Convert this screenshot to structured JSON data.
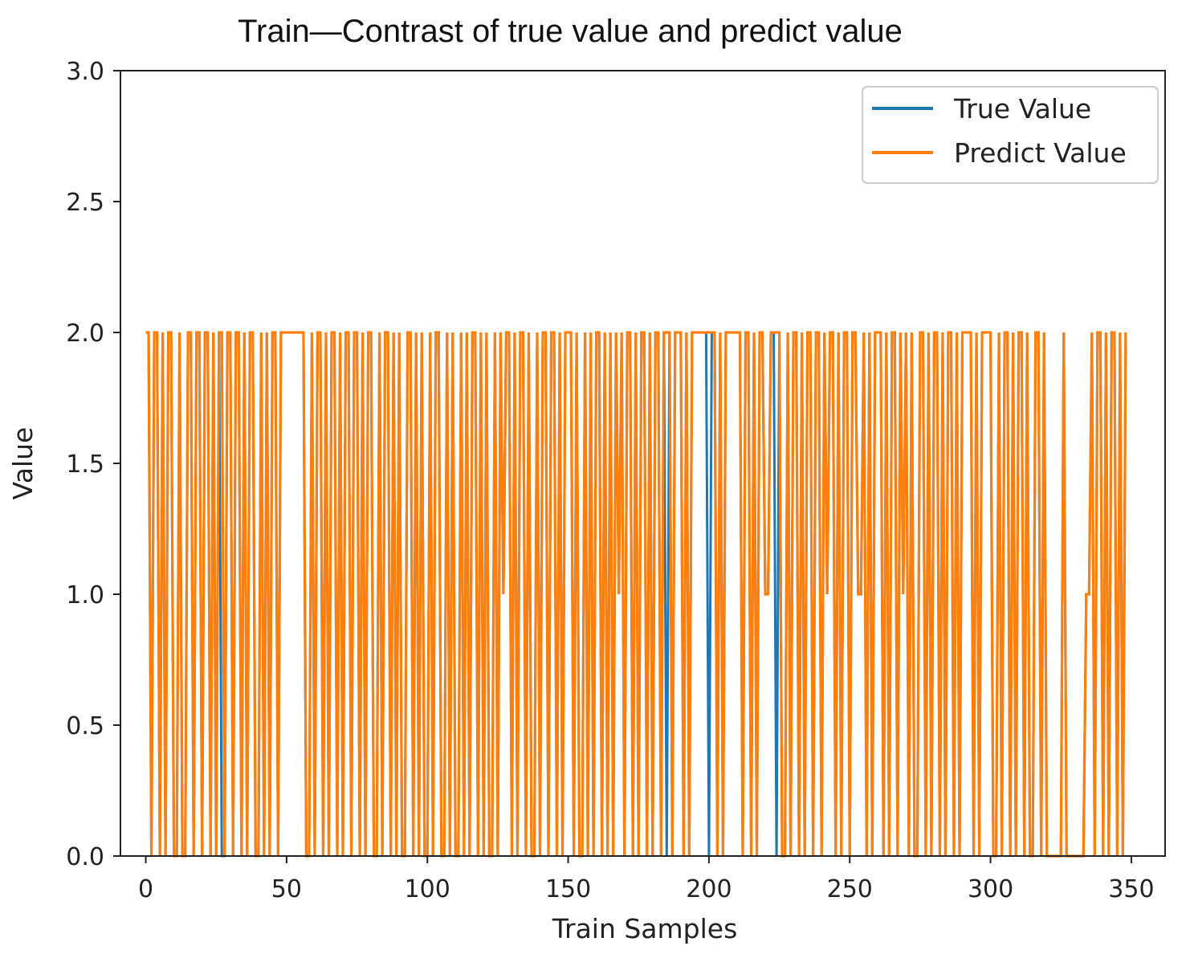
{
  "chart_data": {
    "type": "line",
    "title": "Train—Contrast of true value and predict value",
    "xlabel": "Train Samples",
    "ylabel": "Value",
    "xlim": [
      -9,
      362
    ],
    "ylim": [
      0,
      3.0
    ],
    "xticks": [
      0,
      50,
      100,
      150,
      200,
      250,
      300,
      350
    ],
    "xtick_labels": [
      "0",
      "50",
      "100",
      "150",
      "200",
      "250",
      "300",
      "350"
    ],
    "yticks": [
      0.0,
      0.5,
      1.0,
      1.5,
      2.0,
      2.5,
      3.0
    ],
    "ytick_labels": [
      "0.0",
      "0.5",
      "1.0",
      "1.5",
      "2.0",
      "2.5",
      "3.0"
    ],
    "grid": false,
    "legend_position": "top-right",
    "series": [
      {
        "name": "True Value",
        "color": "#1f77b4",
        "values": [
          2,
          2,
          0,
          2,
          2,
          0,
          2,
          0,
          2,
          2,
          0,
          0,
          2,
          0,
          0,
          2,
          2,
          0,
          2,
          2,
          0,
          2,
          2,
          0,
          2,
          0,
          2,
          0,
          0,
          2,
          2,
          0,
          2,
          2,
          0,
          2,
          0,
          2,
          2,
          0,
          0,
          2,
          0,
          2,
          0,
          2,
          2,
          0,
          2,
          2,
          2,
          2,
          2,
          2,
          2,
          2,
          2,
          0,
          0,
          2,
          0,
          2,
          2,
          0,
          2,
          0,
          2,
          2,
          0,
          2,
          0,
          2,
          2,
          0,
          2,
          2,
          0,
          2,
          0,
          2,
          2,
          0,
          0,
          2,
          0,
          2,
          2,
          0,
          2,
          0,
          2,
          0,
          0,
          2,
          2,
          0,
          2,
          0,
          2,
          0,
          0,
          2,
          0,
          2,
          2,
          0,
          0,
          2,
          0,
          2,
          0,
          0,
          2,
          0,
          2,
          0,
          2,
          2,
          0,
          2,
          0,
          2,
          0,
          0,
          2,
          0,
          2,
          1,
          2,
          2,
          0,
          2,
          0,
          2,
          2,
          0,
          2,
          0,
          0,
          2,
          0,
          2,
          2,
          0,
          2,
          2,
          0,
          2,
          0,
          2,
          2,
          2,
          0,
          2,
          0,
          0,
          2,
          0,
          2,
          0,
          2,
          2,
          0,
          2,
          0,
          2,
          0,
          2,
          1,
          2,
          0,
          2,
          2,
          0,
          2,
          0,
          2,
          2,
          0,
          2,
          0,
          2,
          2,
          0,
          2,
          0,
          2,
          0,
          2,
          2,
          2,
          0,
          2,
          0,
          2,
          2,
          2,
          2,
          2,
          2,
          0,
          2,
          2,
          0,
          2,
          0,
          2,
          2,
          2,
          2,
          2,
          2,
          0,
          2,
          2,
          0,
          2,
          0,
          2,
          2,
          1,
          1,
          2,
          2,
          0,
          2,
          0,
          0,
          2,
          0,
          2,
          2,
          0,
          2,
          0,
          2,
          2,
          0,
          2,
          2,
          0,
          2,
          1,
          2,
          2,
          0,
          2,
          0,
          2,
          2,
          0,
          2,
          2,
          1,
          1,
          2,
          0,
          2,
          0,
          2,
          2,
          2,
          0,
          2,
          0,
          2,
          2,
          0,
          2,
          1,
          2,
          0,
          2,
          0,
          0,
          2,
          2,
          0,
          2,
          0,
          2,
          2,
          0,
          2,
          0,
          2,
          2,
          0,
          2,
          0,
          2,
          2,
          2,
          2,
          0,
          2,
          0,
          2,
          2,
          2,
          2,
          0,
          0,
          2,
          0,
          2,
          2,
          0,
          2,
          0,
          2,
          2,
          0,
          2,
          0,
          0,
          2,
          2,
          0,
          2,
          0,
          0,
          0,
          0,
          0,
          0,
          2,
          0,
          0,
          0,
          0,
          0,
          0,
          0,
          1,
          1,
          2,
          0,
          2,
          2,
          0,
          2,
          0,
          2,
          2,
          0,
          2,
          0,
          2
        ]
      },
      {
        "name": "Predict Value",
        "color": "#ff7f0e",
        "values": [
          2,
          2,
          0,
          2,
          2,
          0,
          2,
          0,
          2,
          2,
          0,
          0,
          2,
          0,
          0,
          2,
          2,
          0,
          2,
          2,
          0,
          2,
          2,
          0,
          2,
          0,
          2,
          2,
          0,
          2,
          2,
          0,
          2,
          2,
          0,
          2,
          0,
          2,
          2,
          0,
          0,
          2,
          0,
          2,
          0,
          2,
          2,
          0,
          2,
          2,
          2,
          2,
          2,
          2,
          2,
          2,
          2,
          0,
          0,
          2,
          0,
          2,
          2,
          0,
          2,
          0,
          2,
          2,
          0,
          2,
          0,
          2,
          2,
          0,
          2,
          2,
          0,
          2,
          0,
          2,
          2,
          0,
          0,
          2,
          0,
          2,
          2,
          0,
          2,
          0,
          2,
          0,
          0,
          2,
          2,
          0,
          2,
          0,
          2,
          0,
          0,
          2,
          0,
          2,
          2,
          0,
          0,
          2,
          0,
          2,
          0,
          0,
          2,
          0,
          2,
          0,
          2,
          2,
          0,
          2,
          0,
          2,
          0,
          0,
          2,
          0,
          2,
          1,
          2,
          2,
          0,
          2,
          0,
          2,
          2,
          0,
          2,
          0,
          0,
          2,
          0,
          2,
          2,
          0,
          2,
          2,
          0,
          2,
          0,
          2,
          2,
          2,
          0,
          2,
          0,
          0,
          2,
          0,
          2,
          0,
          2,
          2,
          0,
          2,
          0,
          2,
          0,
          2,
          1,
          2,
          0,
          2,
          2,
          0,
          2,
          0,
          2,
          2,
          0,
          2,
          0,
          2,
          2,
          0,
          2,
          2,
          2,
          0,
          2,
          2,
          2,
          0,
          2,
          0,
          2,
          2,
          2,
          2,
          2,
          2,
          2,
          2,
          2,
          0,
          2,
          0,
          2,
          2,
          2,
          2,
          2,
          2,
          0,
          2,
          2,
          0,
          2,
          0,
          2,
          2,
          1,
          1,
          2,
          2,
          2,
          2,
          0,
          0,
          2,
          0,
          2,
          2,
          0,
          2,
          0,
          2,
          2,
          0,
          2,
          2,
          0,
          2,
          1,
          2,
          2,
          0,
          2,
          0,
          2,
          2,
          0,
          2,
          2,
          1,
          1,
          2,
          0,
          2,
          0,
          2,
          2,
          2,
          0,
          2,
          0,
          2,
          2,
          0,
          2,
          1,
          2,
          0,
          2,
          0,
          0,
          2,
          2,
          0,
          2,
          0,
          2,
          2,
          0,
          2,
          0,
          2,
          2,
          0,
          2,
          0,
          2,
          2,
          2,
          2,
          0,
          2,
          0,
          2,
          2,
          2,
          2,
          0,
          0,
          2,
          0,
          2,
          2,
          0,
          2,
          0,
          2,
          2,
          0,
          2,
          0,
          0,
          2,
          2,
          0,
          2,
          0,
          0,
          0,
          0,
          0,
          0,
          2,
          0,
          0,
          0,
          0,
          0,
          0,
          0,
          1,
          1,
          2,
          0,
          2,
          2,
          0,
          2,
          0,
          2,
          2,
          0,
          2,
          0,
          2
        ]
      }
    ]
  }
}
